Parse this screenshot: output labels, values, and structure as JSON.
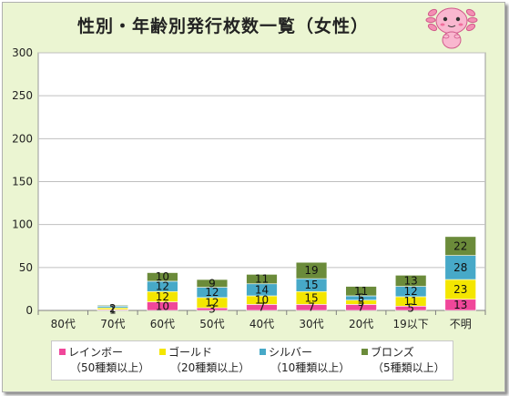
{
  "title": "性別・年齢別発行枚数一覧（女性）",
  "chart_data": {
    "type": "bar",
    "stacked": true,
    "categories": [
      "80代",
      "70代",
      "60代",
      "50代",
      "40代",
      "30代",
      "20代",
      "19以下",
      "不明"
    ],
    "series": [
      {
        "name": "レインボー",
        "sub": "（50種類以上）",
        "color": "#f0479a",
        "values": [
          0,
          1,
          10,
          3,
          7,
          7,
          7,
          5,
          13
        ],
        "labels": [
          "",
          "1",
          "10",
          "3",
          "7",
          "7",
          "7",
          "5",
          "13"
        ]
      },
      {
        "name": "ゴールド",
        "sub": "（20種類以上）",
        "color": "#f4e600",
        "values": [
          0,
          2,
          12,
          12,
          10,
          15,
          5,
          11,
          23
        ],
        "labels": [
          "",
          "2",
          "12",
          "12",
          "10",
          "15",
          "5",
          "11",
          "23"
        ]
      },
      {
        "name": "シルバー",
        "sub": "（10種類以上）",
        "color": "#47a9c8",
        "values": [
          0,
          2,
          12,
          12,
          14,
          15,
          5,
          12,
          28
        ],
        "labels": [
          "",
          "",
          "12",
          "12",
          "14",
          "15",
          "5",
          "12",
          "28"
        ]
      },
      {
        "name": "ブロンズ",
        "sub": "（5種類以上）",
        "color": "#6b8b3a",
        "values": [
          0,
          1,
          10,
          9,
          11,
          19,
          11,
          13,
          22
        ],
        "labels": [
          "",
          "",
          "10",
          "9",
          "11",
          "19",
          "11",
          "13",
          "22"
        ]
      }
    ],
    "ylim": [
      0,
      300
    ],
    "yticks": [
      0,
      50,
      100,
      150,
      200,
      250,
      300
    ],
    "grid": true,
    "legend_position": "bottom"
  },
  "colors": {
    "background": "#ebf5d2",
    "plot": "#ffffff",
    "grid": "#bfbfbf"
  },
  "mascot_icon": "axolotl-mascot-icon"
}
